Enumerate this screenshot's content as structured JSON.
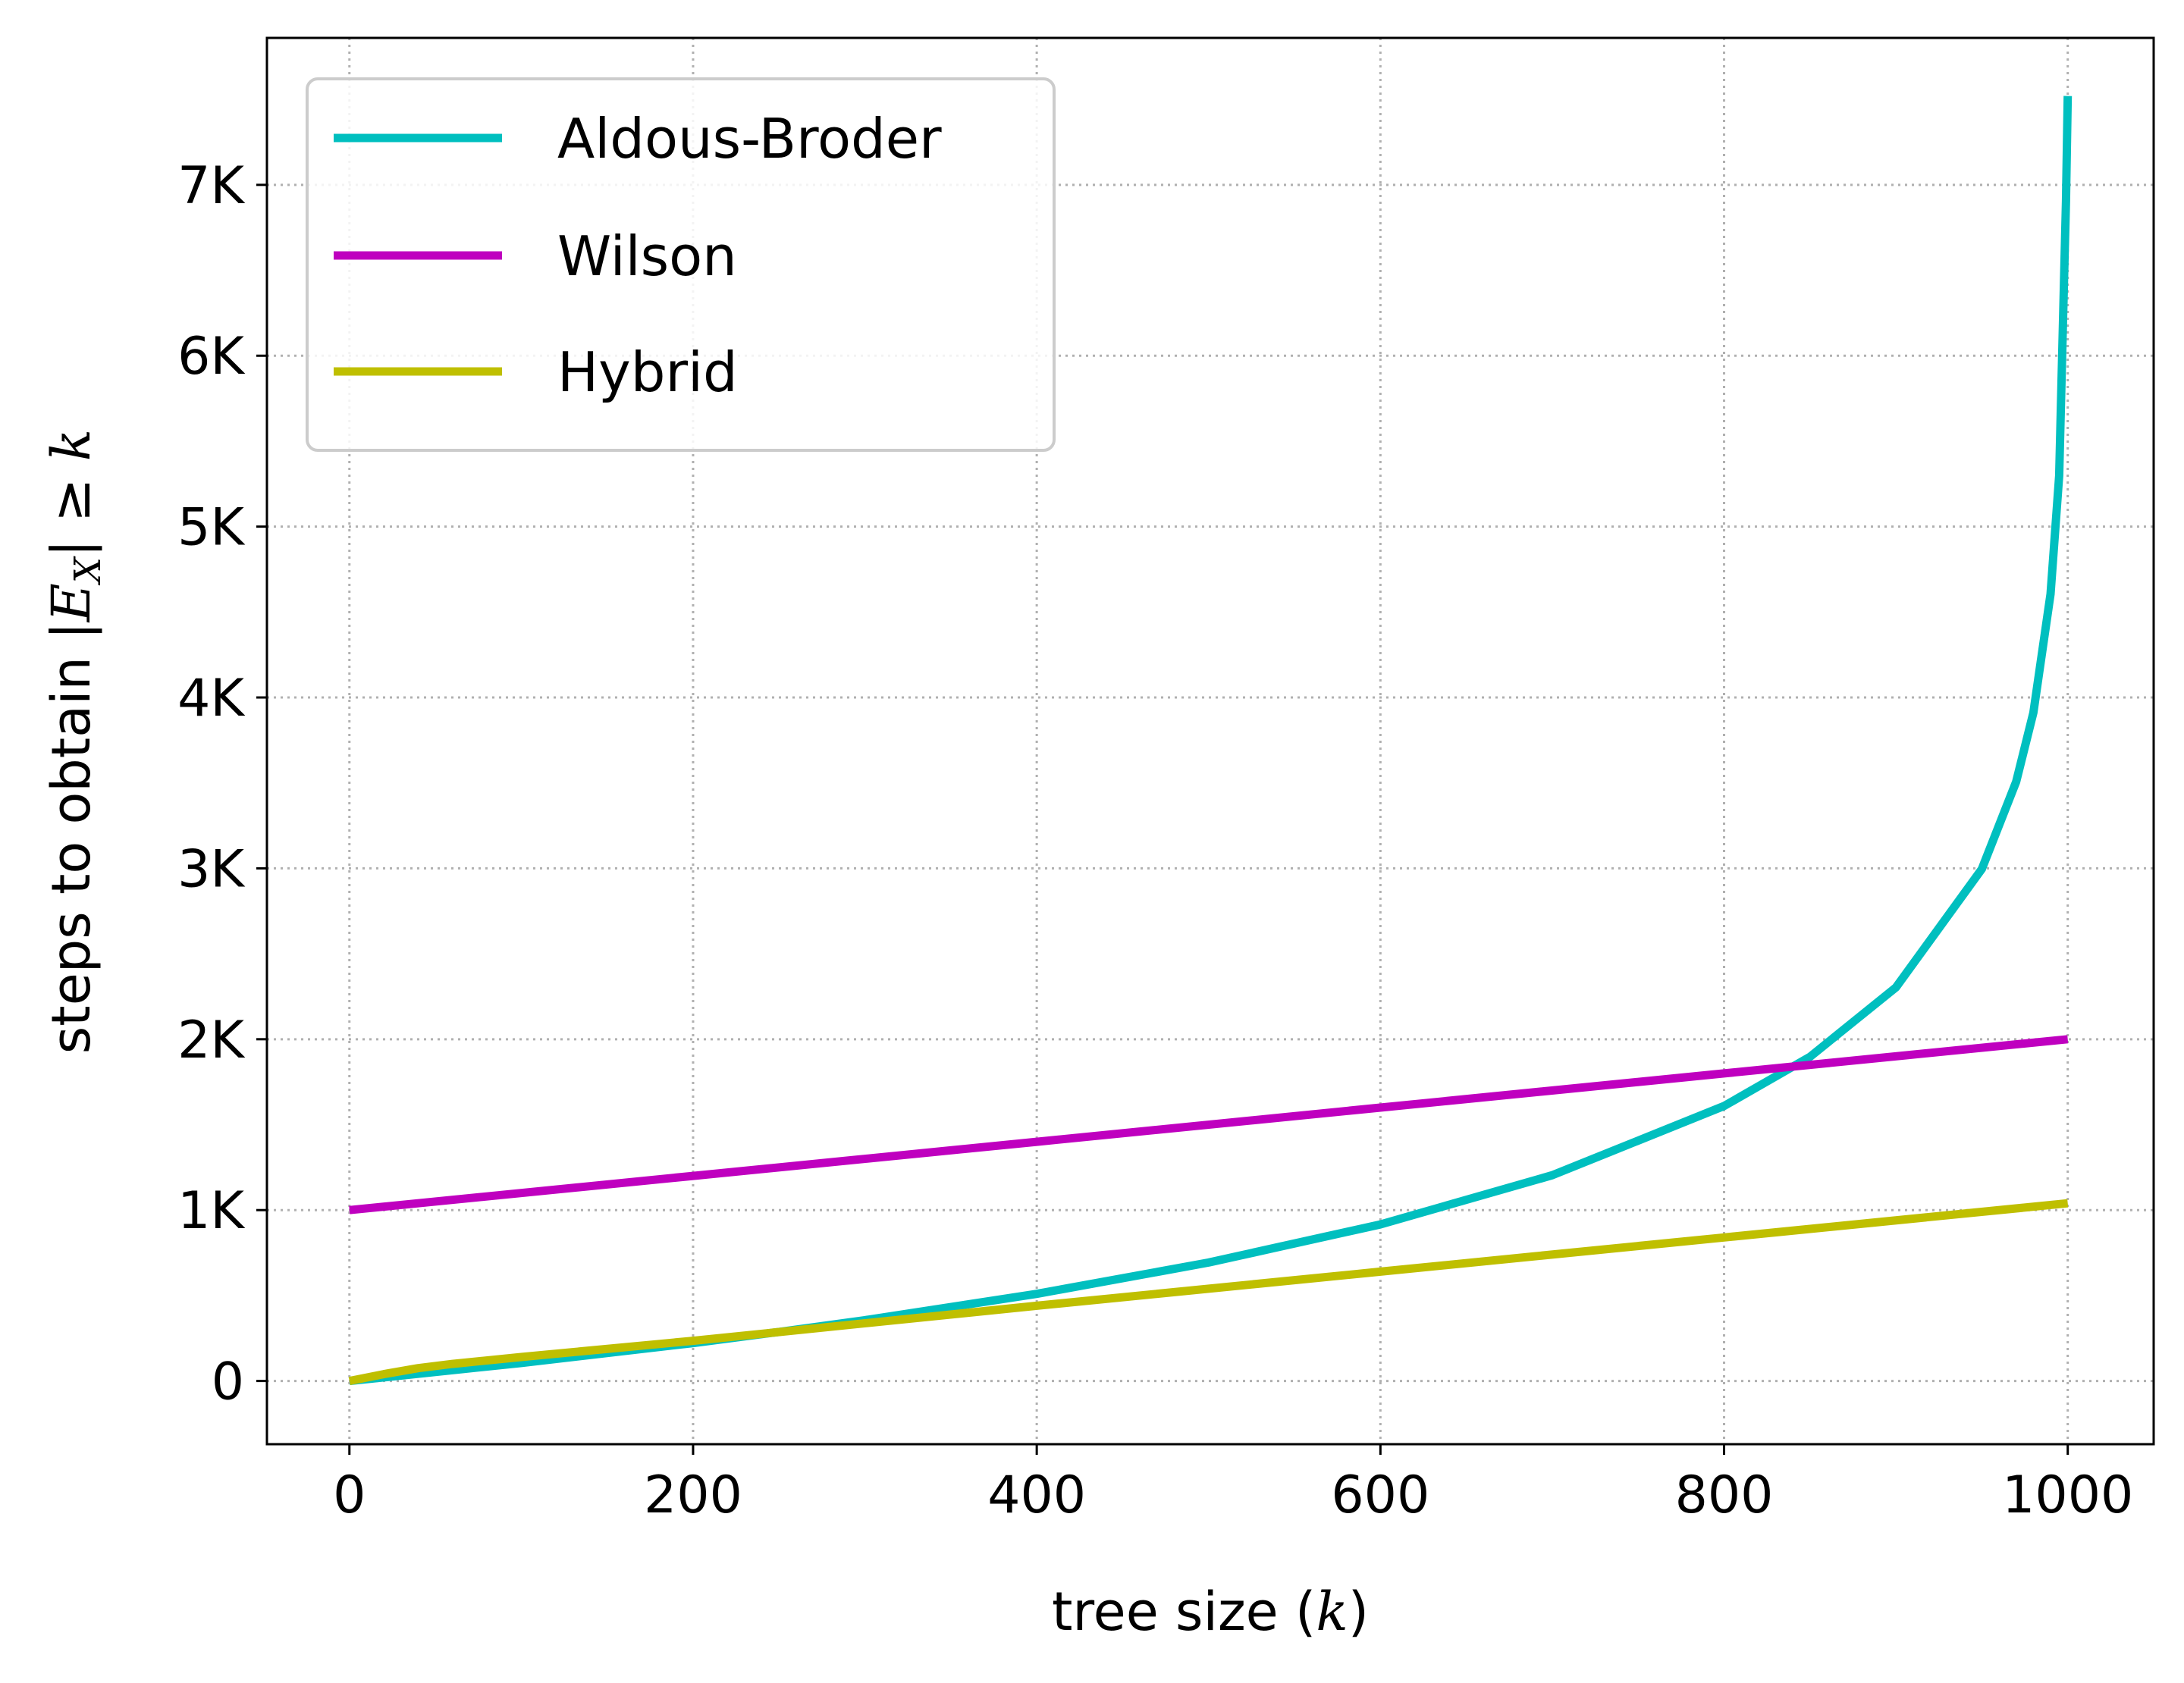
{
  "chart_data": {
    "type": "line",
    "title": "",
    "xlabel_prefix": "tree size (",
    "xlabel_var": "k",
    "xlabel_suffix": ")",
    "ylabel_prefix": "steps to obtain |",
    "ylabel_E": "E",
    "ylabel_X": "X",
    "ylabel_suffix": "| ≥ ",
    "ylabel_var": "k",
    "xlim": [
      -48,
      1050
    ],
    "ylim": [
      -370,
      7860
    ],
    "x_ticks": [
      0,
      200,
      400,
      600,
      800,
      1000
    ],
    "x_tick_labels": [
      "0",
      "200",
      "400",
      "600",
      "800",
      "1000"
    ],
    "y_ticks": [
      0,
      1000,
      2000,
      3000,
      4000,
      5000,
      6000,
      7000
    ],
    "y_tick_labels": [
      "0",
      "1K",
      "2K",
      "3K",
      "4K",
      "5K",
      "6K",
      "7K"
    ],
    "grid": true,
    "grid_style": "dotted",
    "legend_position": "top-left",
    "series": [
      {
        "name": "Aldous-Broder",
        "color": "#00BFBF",
        "x": [
          0,
          100,
          200,
          250,
          300,
          400,
          500,
          600,
          700,
          800,
          850,
          900,
          950,
          970,
          980,
          990,
          995,
          999,
          1000
        ],
        "y": [
          0,
          105,
          222,
          287,
          356,
          510,
          693,
          916,
          1204,
          1609,
          1897,
          2303,
          2996,
          3507,
          3912,
          4605,
          5298,
          6908,
          7520
        ]
      },
      {
        "name": "Wilson",
        "color": "#BF00BF",
        "x": [
          0,
          200,
          400,
          600,
          800,
          1000
        ],
        "y": [
          1000,
          1200,
          1400,
          1600,
          1800,
          2000
        ]
      },
      {
        "name": "Hybrid",
        "color": "#BFBF00",
        "x": [
          0,
          20,
          40,
          60,
          100,
          200,
          400,
          600,
          800,
          1000
        ],
        "y": [
          0,
          40,
          75,
          100,
          140,
          235,
          440,
          640,
          840,
          1040
        ]
      }
    ]
  }
}
